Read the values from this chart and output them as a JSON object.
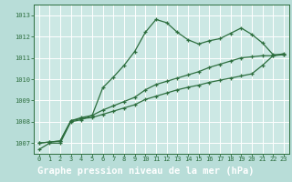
{
  "bg_color": "#b8ddd8",
  "plot_bg_color": "#cce8e4",
  "grid_color": "#ffffff",
  "line_color": "#2d6e3e",
  "footer_bg": "#3a7a50",
  "footer_text_color": "#ffffff",
  "title": "Graphe pression niveau de la mer (hPa)",
  "ylim": [
    1006.5,
    1013.5
  ],
  "xlim": [
    -0.5,
    23.5
  ],
  "yticks": [
    1007,
    1008,
    1009,
    1010,
    1011,
    1012,
    1013
  ],
  "xticks": [
    0,
    1,
    2,
    3,
    4,
    5,
    6,
    7,
    8,
    9,
    10,
    11,
    12,
    13,
    14,
    15,
    16,
    17,
    18,
    19,
    20,
    21,
    22,
    23
  ],
  "series1_x": [
    0,
    1,
    2,
    3,
    4,
    5,
    6,
    7,
    8,
    9,
    10,
    11,
    12,
    13,
    14,
    15,
    16,
    17,
    18,
    19,
    20,
    21,
    22,
    23
  ],
  "series1_y": [
    1006.7,
    1007.0,
    1007.0,
    1008.0,
    1008.1,
    1008.3,
    1009.6,
    1010.1,
    1010.65,
    1011.3,
    1012.2,
    1012.8,
    1012.65,
    1012.2,
    1011.85,
    1011.65,
    1011.8,
    1011.9,
    1012.15,
    1012.4,
    1012.1,
    1011.7,
    1011.15,
    1011.15
  ],
  "series2_x": [
    0,
    1,
    2,
    3,
    4,
    5,
    6,
    7,
    8,
    9,
    10,
    11,
    12,
    13,
    14,
    15,
    16,
    17,
    18,
    19,
    20,
    21,
    22,
    23
  ],
  "series2_y": [
    1007.0,
    1007.05,
    1007.1,
    1008.05,
    1008.2,
    1008.3,
    1008.55,
    1008.75,
    1008.95,
    1009.15,
    1009.5,
    1009.75,
    1009.9,
    1010.05,
    1010.2,
    1010.35,
    1010.55,
    1010.7,
    1010.85,
    1011.0,
    1011.05,
    1011.1,
    1011.1,
    1011.2
  ],
  "series3_x": [
    0,
    1,
    2,
    3,
    4,
    5,
    6,
    7,
    8,
    9,
    10,
    11,
    12,
    13,
    14,
    15,
    16,
    17,
    18,
    19,
    20,
    21,
    22,
    23
  ],
  "series3_y": [
    1007.0,
    1007.05,
    1007.1,
    1008.05,
    1008.15,
    1008.2,
    1008.35,
    1008.5,
    1008.65,
    1008.8,
    1009.05,
    1009.2,
    1009.35,
    1009.5,
    1009.62,
    1009.72,
    1009.85,
    1009.95,
    1010.05,
    1010.15,
    1010.25,
    1010.65,
    1011.1,
    1011.15
  ]
}
